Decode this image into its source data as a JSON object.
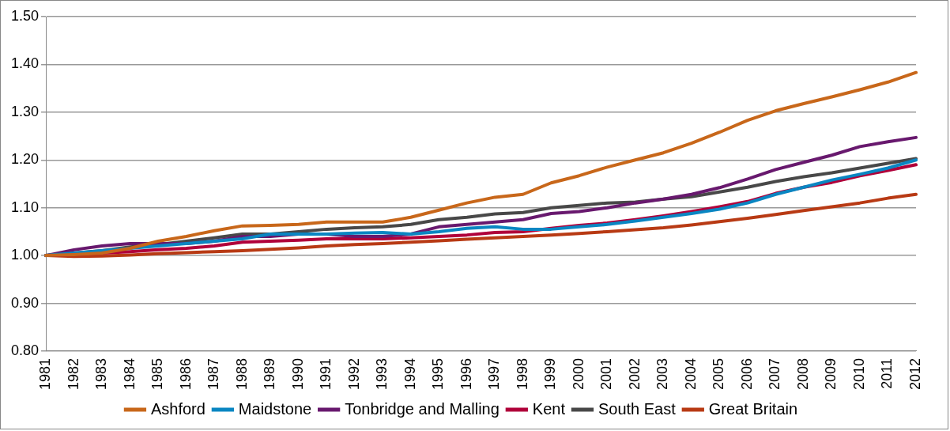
{
  "chart_data": {
    "type": "line",
    "categories": [
      "1981",
      "1982",
      "1983",
      "1984",
      "1985",
      "1986",
      "1987",
      "1988",
      "1989",
      "1990",
      "1991",
      "1992",
      "1993",
      "1994",
      "1995",
      "1996",
      "1997",
      "1998",
      "1999",
      "2000",
      "2001",
      "2002",
      "2003",
      "2004",
      "2005",
      "2006",
      "2007",
      "2008",
      "2009",
      "2010",
      "2011",
      "2012"
    ],
    "series": [
      {
        "name": "Ashford",
        "color": "#c8671a",
        "values": [
          1.0,
          1.002,
          1.005,
          1.015,
          1.03,
          1.04,
          1.052,
          1.062,
          1.063,
          1.065,
          1.07,
          1.07,
          1.07,
          1.08,
          1.095,
          1.11,
          1.122,
          1.128,
          1.152,
          1.167,
          1.185,
          1.2,
          1.215,
          1.235,
          1.258,
          1.283,
          1.303,
          1.318,
          1.332,
          1.347,
          1.363,
          1.383
        ]
      },
      {
        "name": "Maidstone",
        "color": "#0a86c2",
        "values": [
          1.0,
          1.005,
          1.01,
          1.015,
          1.02,
          1.025,
          1.03,
          1.035,
          1.045,
          1.045,
          1.045,
          1.047,
          1.048,
          1.045,
          1.05,
          1.057,
          1.06,
          1.055,
          1.055,
          1.06,
          1.065,
          1.072,
          1.08,
          1.088,
          1.097,
          1.11,
          1.128,
          1.143,
          1.158,
          1.17,
          1.183,
          1.2
        ]
      },
      {
        "name": "Tonbridge and Malling",
        "color": "#68196e",
        "values": [
          1.0,
          1.012,
          1.02,
          1.025,
          1.025,
          1.025,
          1.03,
          1.04,
          1.04,
          1.045,
          1.045,
          1.04,
          1.04,
          1.045,
          1.06,
          1.065,
          1.07,
          1.075,
          1.088,
          1.092,
          1.1,
          1.11,
          1.118,
          1.128,
          1.142,
          1.16,
          1.18,
          1.195,
          1.21,
          1.228,
          1.238,
          1.247
        ]
      },
      {
        "name": "Kent",
        "color": "#b0003a",
        "values": [
          1.0,
          1.002,
          1.005,
          1.008,
          1.012,
          1.015,
          1.02,
          1.028,
          1.03,
          1.032,
          1.035,
          1.035,
          1.035,
          1.037,
          1.04,
          1.043,
          1.048,
          1.05,
          1.057,
          1.063,
          1.068,
          1.075,
          1.083,
          1.092,
          1.102,
          1.113,
          1.13,
          1.143,
          1.153,
          1.167,
          1.178,
          1.19
        ]
      },
      {
        "name": "South East",
        "color": "#484848",
        "values": [
          1.0,
          1.005,
          1.01,
          1.018,
          1.023,
          1.03,
          1.037,
          1.045,
          1.045,
          1.05,
          1.055,
          1.058,
          1.06,
          1.065,
          1.075,
          1.08,
          1.087,
          1.09,
          1.1,
          1.105,
          1.11,
          1.112,
          1.118,
          1.123,
          1.133,
          1.143,
          1.155,
          1.165,
          1.173,
          1.183,
          1.193,
          1.203
        ]
      },
      {
        "name": "Great Britain",
        "color": "#b83a14",
        "values": [
          1.0,
          0.998,
          0.999,
          1.001,
          1.004,
          1.006,
          1.008,
          1.01,
          1.013,
          1.016,
          1.02,
          1.023,
          1.025,
          1.028,
          1.031,
          1.034,
          1.037,
          1.04,
          1.043,
          1.046,
          1.05,
          1.054,
          1.058,
          1.064,
          1.071,
          1.078,
          1.086,
          1.094,
          1.102,
          1.11,
          1.12,
          1.128
        ]
      }
    ],
    "ylim": [
      0.8,
      1.5
    ],
    "yticks": [
      {
        "value": 0.8,
        "label": "0.80"
      },
      {
        "value": 0.9,
        "label": "0.90"
      },
      {
        "value": 1.0,
        "label": "1.00"
      },
      {
        "value": 1.1,
        "label": "1.10"
      },
      {
        "value": 1.2,
        "label": "1.20"
      },
      {
        "value": 1.3,
        "label": "1.30"
      },
      {
        "value": 1.4,
        "label": "1.40"
      },
      {
        "value": 1.5,
        "label": "1.50"
      }
    ],
    "grid": "y",
    "legend": "bottom",
    "marker": "none",
    "line_style": "solid"
  }
}
